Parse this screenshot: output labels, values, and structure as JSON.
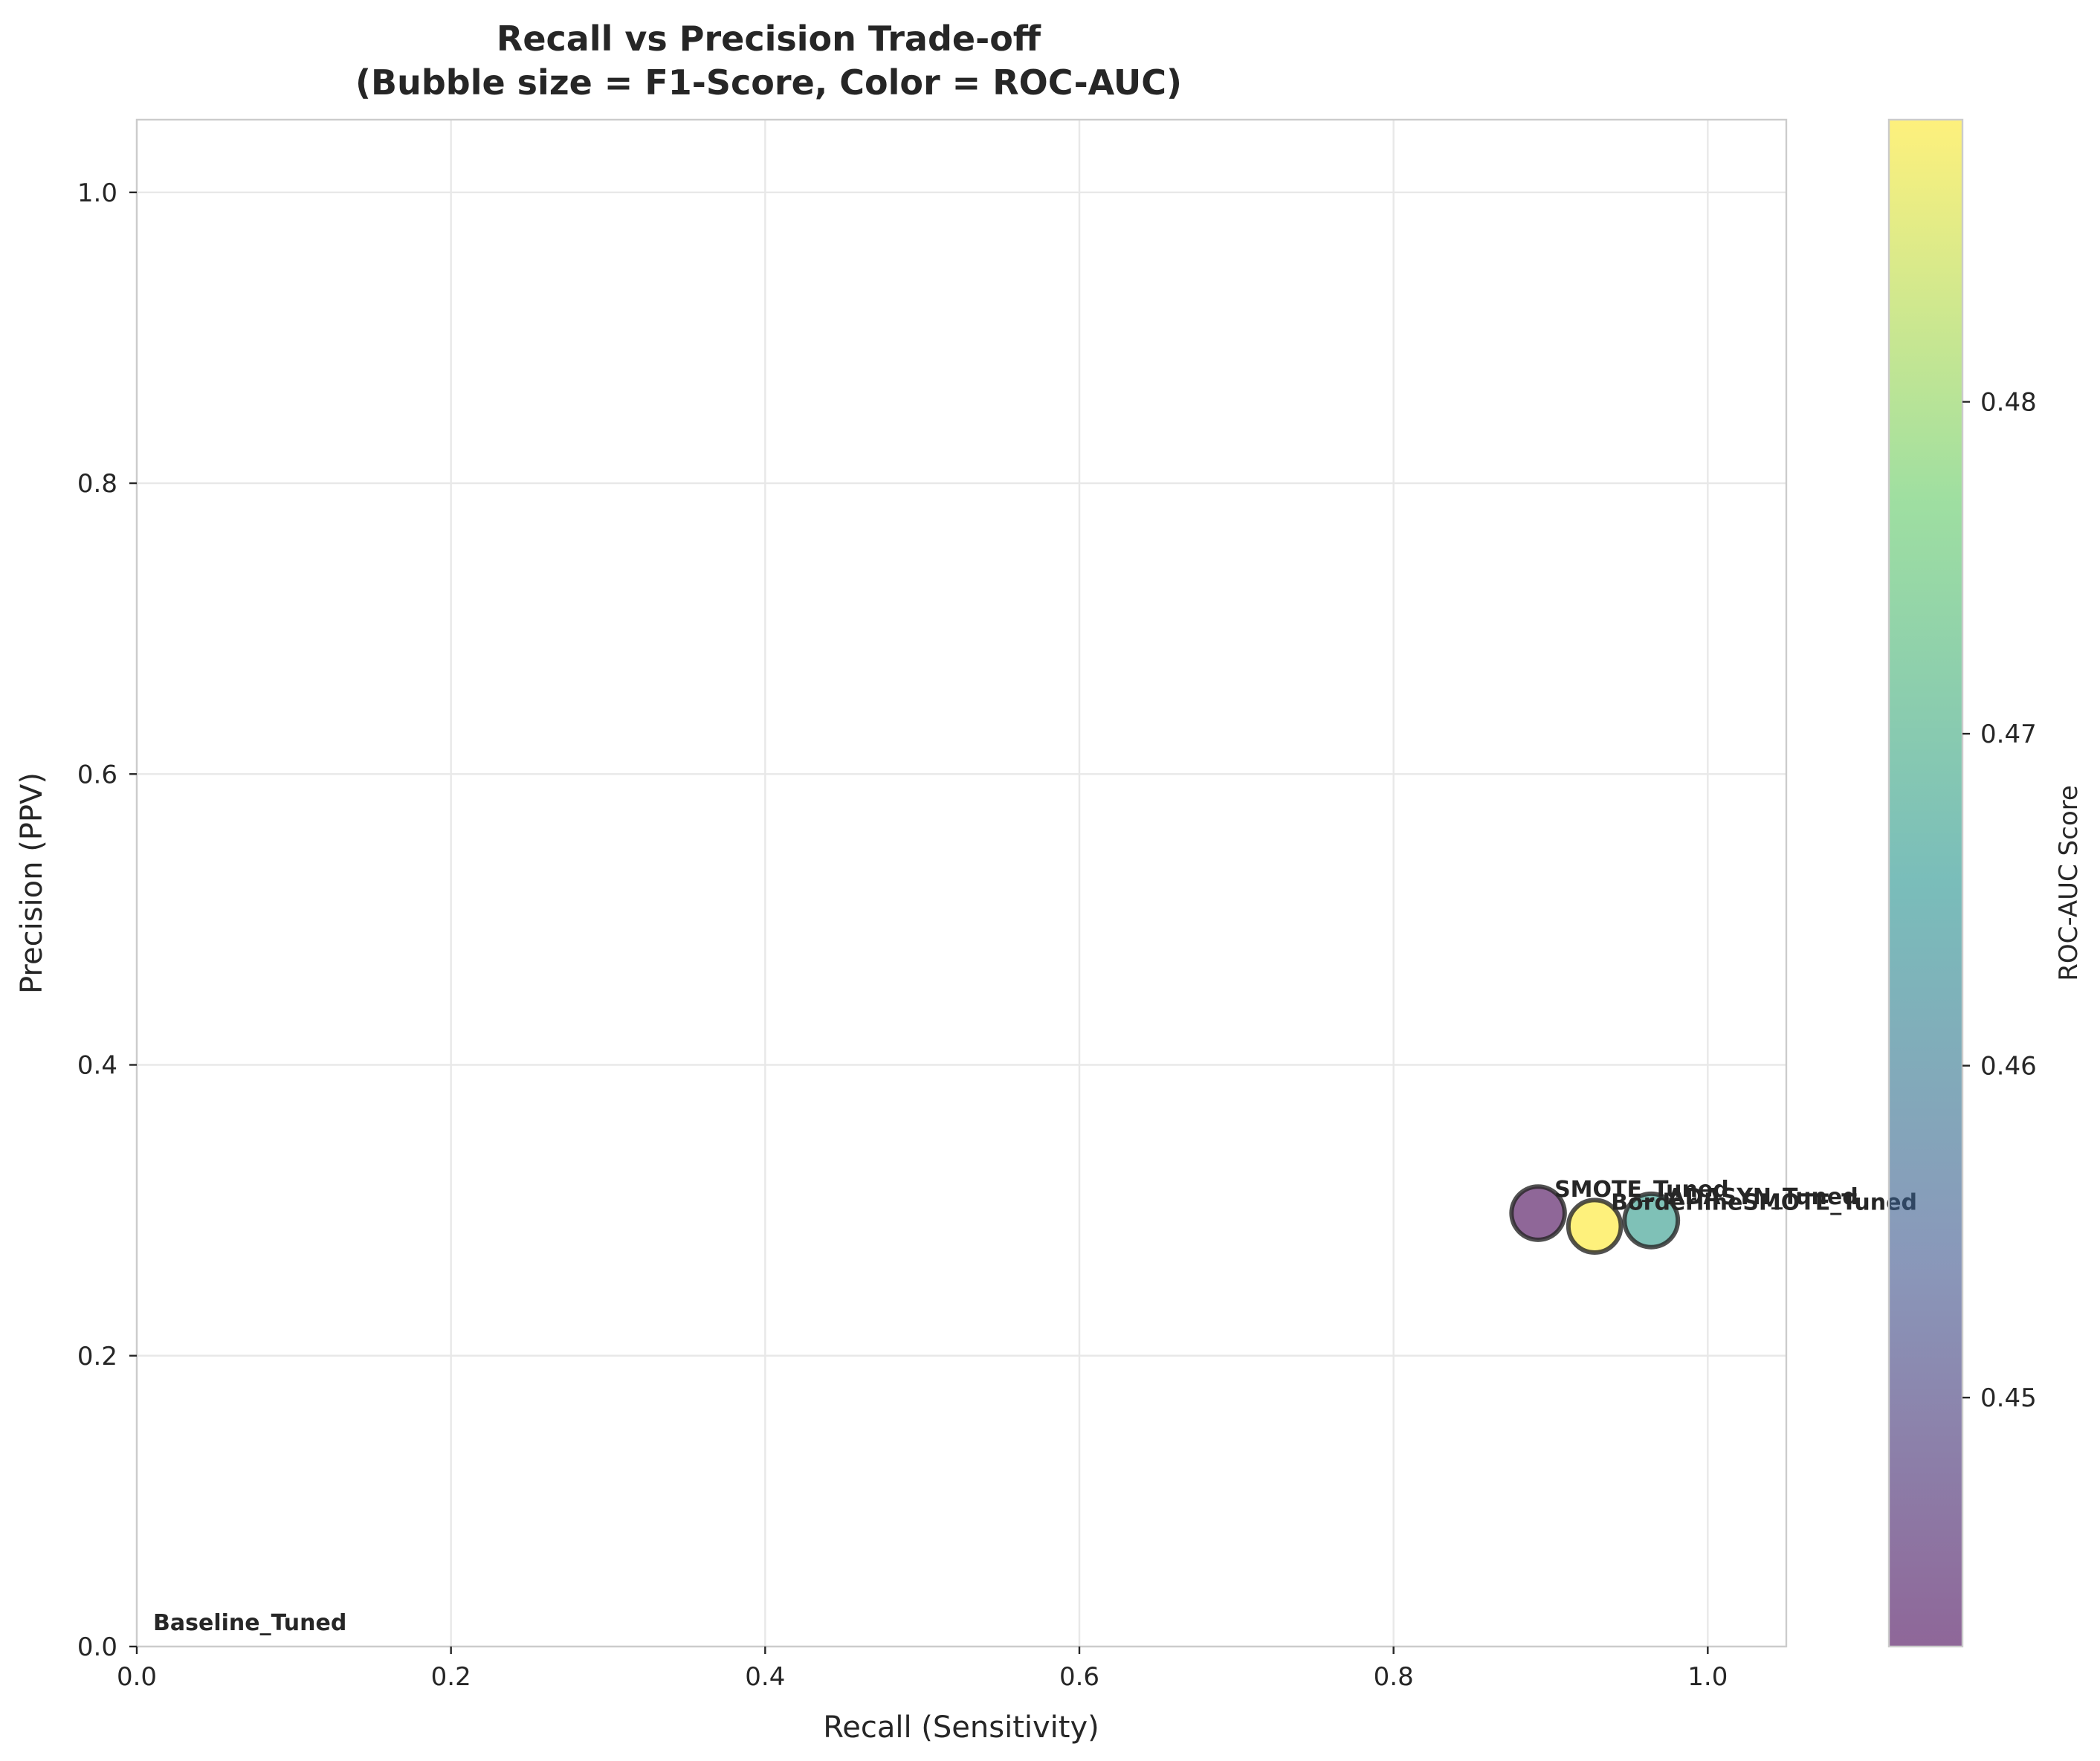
{
  "chart_data": {
    "type": "scatter",
    "title": "Recall vs Precision Trade-off\n(Bubble size = F1-Score, Color = ROC-AUC)",
    "xlabel": "Recall (Sensitivity)",
    "ylabel": "Precision (PPV)",
    "xlim": [
      0.0,
      1.05
    ],
    "ylim": [
      0.0,
      1.05
    ],
    "x_ticks": [
      "0.0",
      "0.2",
      "0.4",
      "0.6",
      "0.8",
      "1.0"
    ],
    "y_ticks": [
      "0.0",
      "0.2",
      "0.4",
      "0.6",
      "0.8",
      "1.0"
    ],
    "grid": true,
    "points": [
      {
        "label": "Baseline_Tuned",
        "recall": 0.0,
        "precision": 0.0,
        "roc_auc": 0.5,
        "f1": 0.0
      },
      {
        "label": "SMOTE_Tuned",
        "recall": 0.892,
        "precision": 0.298,
        "roc_auc": 0.4425,
        "f1": 0.447
      },
      {
        "label": "BorderlineSMOTE_Tuned",
        "recall": 0.928,
        "precision": 0.289,
        "roc_auc": 0.4885,
        "f1": 0.441
      },
      {
        "label": "ADASYN_Tuned",
        "recall": 0.964,
        "precision": 0.293,
        "roc_auc": 0.467,
        "f1": 0.449
      }
    ],
    "colorbar": {
      "label": "ROC-AUC Score",
      "range": [
        0.4425,
        0.4885
      ],
      "ticks": [
        "0.45",
        "0.46",
        "0.47",
        "0.48"
      ],
      "colormap": "viridis",
      "alpha": 0.6
    },
    "colors": {
      "edge": "#262626",
      "viridis_stops": [
        "#440154",
        "#3b528b",
        "#21918c",
        "#5ec962",
        "#fde725"
      ]
    }
  }
}
